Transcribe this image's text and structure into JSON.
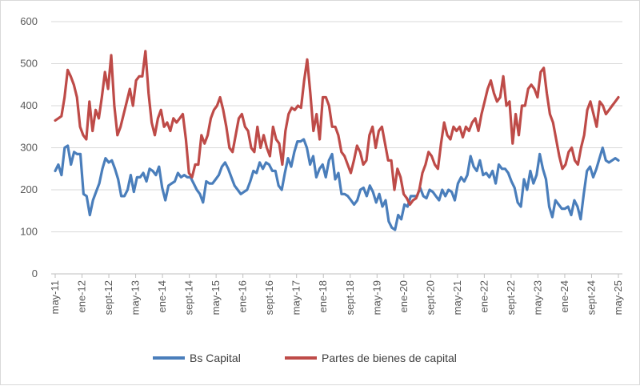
{
  "chart_data": {
    "type": "line",
    "title": "",
    "xlabel": "",
    "ylabel": "",
    "ylim": [
      0,
      600
    ],
    "yticks": [
      0,
      100,
      200,
      300,
      400,
      500,
      600
    ],
    "grid": "horizontal",
    "legend_position": "bottom",
    "x_tick_labels": [
      "may-11",
      "ene-12",
      "sept-12",
      "may-13",
      "ene-14",
      "sept-14",
      "may-15",
      "ene-16",
      "sept-16",
      "may-17",
      "ene-18",
      "sept-18",
      "may-19",
      "ene-20",
      "sept-20",
      "may-21",
      "ene-22",
      "sept-22",
      "may-23",
      "ene-24",
      "sept-24",
      "may-25"
    ],
    "series": [
      {
        "name": "Bs Capital",
        "color": "#4a7ebb",
        "values": [
          245,
          260,
          235,
          300,
          305,
          260,
          290,
          285,
          285,
          190,
          185,
          140,
          175,
          195,
          215,
          250,
          275,
          265,
          270,
          250,
          225,
          185,
          185,
          200,
          235,
          195,
          230,
          230,
          240,
          220,
          250,
          245,
          235,
          255,
          205,
          175,
          210,
          215,
          220,
          240,
          230,
          235,
          230,
          230,
          215,
          200,
          190,
          170,
          220,
          215,
          215,
          225,
          235,
          255,
          265,
          250,
          230,
          210,
          200,
          190,
          195,
          200,
          220,
          245,
          240,
          265,
          250,
          265,
          260,
          245,
          245,
          210,
          200,
          240,
          275,
          255,
          290,
          315,
          315,
          320,
          300,
          260,
          280,
          230,
          250,
          260,
          230,
          270,
          285,
          225,
          240,
          190,
          190,
          185,
          175,
          165,
          175,
          200,
          205,
          185,
          210,
          195,
          170,
          190,
          160,
          175,
          125,
          110,
          105,
          140,
          130,
          165,
          160,
          185,
          185,
          185,
          205,
          185,
          180,
          200,
          195,
          185,
          175,
          200,
          185,
          200,
          195,
          175,
          215,
          230,
          220,
          235,
          280,
          255,
          245,
          270,
          235,
          240,
          230,
          245,
          215,
          260,
          250,
          250,
          240,
          220,
          205,
          170,
          160,
          225,
          200,
          245,
          215,
          235,
          285,
          250,
          225,
          160,
          135,
          175,
          165,
          155,
          155,
          160,
          140,
          175,
          160,
          130,
          190,
          245,
          255,
          230,
          250,
          275,
          300,
          270,
          265,
          270,
          275,
          270
        ]
      },
      {
        "name": "Partes de bienes de capital",
        "color": "#be4b48",
        "values": [
          365,
          370,
          375,
          420,
          485,
          470,
          450,
          420,
          350,
          330,
          320,
          410,
          340,
          390,
          370,
          420,
          480,
          440,
          520,
          400,
          330,
          350,
          380,
          410,
          440,
          400,
          460,
          470,
          470,
          530,
          430,
          360,
          330,
          370,
          390,
          350,
          360,
          340,
          370,
          360,
          370,
          380,
          320,
          240,
          230,
          260,
          260,
          330,
          310,
          330,
          370,
          390,
          400,
          420,
          390,
          350,
          300,
          290,
          330,
          370,
          380,
          350,
          340,
          300,
          290,
          350,
          300,
          330,
          300,
          280,
          350,
          320,
          310,
          260,
          340,
          380,
          395,
          390,
          400,
          395,
          460,
          510,
          430,
          340,
          380,
          320,
          420,
          420,
          400,
          350,
          350,
          330,
          290,
          280,
          260,
          240,
          270,
          305,
          290,
          260,
          270,
          330,
          350,
          300,
          340,
          350,
          310,
          270,
          270,
          200,
          250,
          230,
          190,
          180,
          165,
          175,
          180,
          200,
          240,
          260,
          290,
          280,
          260,
          250,
          310,
          360,
          330,
          320,
          350,
          340,
          350,
          325,
          350,
          340,
          360,
          370,
          340,
          380,
          410,
          440,
          460,
          430,
          410,
          420,
          470,
          400,
          410,
          310,
          380,
          330,
          400,
          400,
          440,
          450,
          440,
          420,
          480,
          490,
          430,
          380,
          360,
          320,
          280,
          250,
          260,
          290,
          300,
          270,
          260,
          300,
          330,
          390,
          410,
          380,
          350,
          410,
          400,
          380,
          390,
          400,
          410,
          420
        ]
      }
    ]
  }
}
